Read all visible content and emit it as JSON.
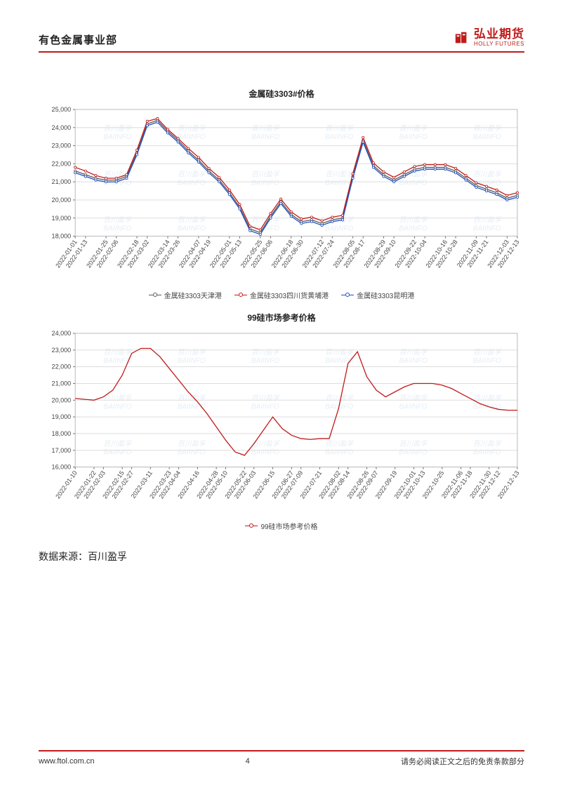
{
  "header": {
    "department": "有色金属事业部",
    "logo": {
      "cn": "弘业期货",
      "en": "HOLLY FUTURES"
    }
  },
  "chart1": {
    "title": "金属硅3303#价格",
    "type": "line",
    "background_color": "#ffffff",
    "grid_color": "#dddddd",
    "border_color": "#bbbbbb",
    "ylim": [
      18000,
      25000
    ],
    "ytick_step": 1000,
    "yticks": [
      "18,000",
      "19,000",
      "20,000",
      "21,000",
      "22,000",
      "23,000",
      "24,000",
      "25,000"
    ],
    "xlabels": [
      "2022-01-01",
      "2022-01-13",
      "2022-01-25",
      "2022-02-06",
      "2022-02-18",
      "2022-03-02",
      "2022-03-14",
      "2022-03-26",
      "2022-04-07",
      "2022-04-19",
      "2022-05-01",
      "2022-05-13",
      "2022-05-25",
      "2022-06-06",
      "2022-06-18",
      "2022-06-30",
      "2022-07-12",
      "2022-07-24",
      "2022-08-05",
      "2022-08-17",
      "2022-08-29",
      "2022-09-10",
      "2022-09-22",
      "2022-10-04",
      "2022-10-16",
      "2022-10-28",
      "2022-11-09",
      "2022-11-21",
      "2022-12-03",
      "2022-12-13"
    ],
    "series": [
      {
        "name": "金属硅3303天津港",
        "color": "#5a5a5a",
        "marker_fill": "#ffffff",
        "values": [
          21600,
          21400,
          21200,
          21100,
          21100,
          21300,
          22600,
          24200,
          24400,
          23800,
          23300,
          22700,
          22200,
          21600,
          21100,
          20400,
          19600,
          18400,
          18200,
          19100,
          19900,
          19200,
          18800,
          18900,
          18700,
          18900,
          19000,
          21300,
          23300,
          21900,
          21400,
          21100,
          21400,
          21700,
          21800,
          21800,
          21800,
          21600,
          21200,
          20800,
          20600,
          20400,
          20100,
          20250
        ]
      },
      {
        "name": "金属硅3303四川货黄埔港",
        "color": "#c01b1b",
        "marker_fill": "#ffffff",
        "values": [
          21800,
          21600,
          21350,
          21200,
          21200,
          21400,
          22750,
          24350,
          24500,
          23900,
          23400,
          22850,
          22350,
          21750,
          21250,
          20550,
          19750,
          18550,
          18350,
          19250,
          20050,
          19350,
          18950,
          19050,
          18850,
          19050,
          19150,
          21450,
          23450,
          22050,
          21550,
          21250,
          21550,
          21850,
          21950,
          21950,
          21950,
          21750,
          21350,
          20950,
          20750,
          20550,
          20250,
          20400
        ]
      },
      {
        "name": "金属硅3303昆明港",
        "color": "#2050c0",
        "marker_fill": "#ffffff",
        "values": [
          21500,
          21300,
          21100,
          21000,
          21000,
          21200,
          22500,
          24100,
          24300,
          23700,
          23200,
          22600,
          22100,
          21500,
          21000,
          20300,
          19500,
          18300,
          18100,
          19000,
          19800,
          19100,
          18700,
          18800,
          18600,
          18800,
          18900,
          21200,
          23200,
          21800,
          21300,
          21000,
          21300,
          21600,
          21700,
          21700,
          21700,
          21500,
          21100,
          20700,
          20500,
          20300,
          20000,
          20150
        ]
      }
    ],
    "legend_labels": [
      "金属硅3303天津港",
      "金属硅3303四川货黄埔港",
      "金属硅3303昆明港"
    ],
    "label_fontsize": 9,
    "watermark": "百川盈孚 BAIINFO"
  },
  "chart2": {
    "title": "99硅市场参考价格",
    "type": "line",
    "background_color": "#ffffff",
    "grid_color": "#dddddd",
    "border_color": "#bbbbbb",
    "ylim": [
      16000,
      24000
    ],
    "ytick_step": 1000,
    "yticks": [
      "16,000",
      "17,000",
      "18,000",
      "19,000",
      "20,000",
      "21,000",
      "22,000",
      "23,000",
      "24,000"
    ],
    "xlabels": [
      "2022-01-10",
      "2022-01-22",
      "2022-02-03",
      "2022-02-15",
      "2022-02-27",
      "2022-03-11",
      "2022-03-23",
      "2022-04-04",
      "2022-04-16",
      "2022-04-28",
      "2022-05-10",
      "2022-05-22",
      "2022-06-03",
      "2022-06-15",
      "2022-06-27",
      "2022-07-09",
      "2022-07-21",
      "2022-08-02",
      "2022-08-14",
      "2022-08-26",
      "2022-09-07",
      "2022-09-19",
      "2022-10-01",
      "2022-10-13",
      "2022-10-25",
      "2022-11-06",
      "2022-11-18",
      "2022-11-30",
      "2022-12-12",
      "2022-12-13"
    ],
    "series": [
      {
        "name": "99硅市场参考价格",
        "color": "#c01b1b",
        "marker_fill": "#ffffff",
        "values": [
          20100,
          20050,
          20000,
          20200,
          20600,
          21500,
          22800,
          23100,
          23100,
          22600,
          21900,
          21200,
          20500,
          19900,
          19200,
          18400,
          17600,
          16900,
          16700,
          17400,
          18200,
          19000,
          18300,
          17900,
          17700,
          17650,
          17700,
          17700,
          19500,
          22200,
          22900,
          21400,
          20600,
          20200,
          20500,
          20800,
          21000,
          21000,
          21000,
          20900,
          20700,
          20400,
          20100,
          19800,
          19600,
          19450,
          19400,
          19400
        ]
      }
    ],
    "legend_labels": [
      "99硅市场参考价格"
    ],
    "label_fontsize": 9,
    "watermark": "百川盈孚 BAIINFO"
  },
  "data_source": {
    "label": "数据来源：",
    "value": "百川盈孚"
  },
  "footer": {
    "url": "www.ftol.com.cn",
    "page": "4",
    "disclaimer": "请务必阅读正文之后的免责条款部分"
  }
}
